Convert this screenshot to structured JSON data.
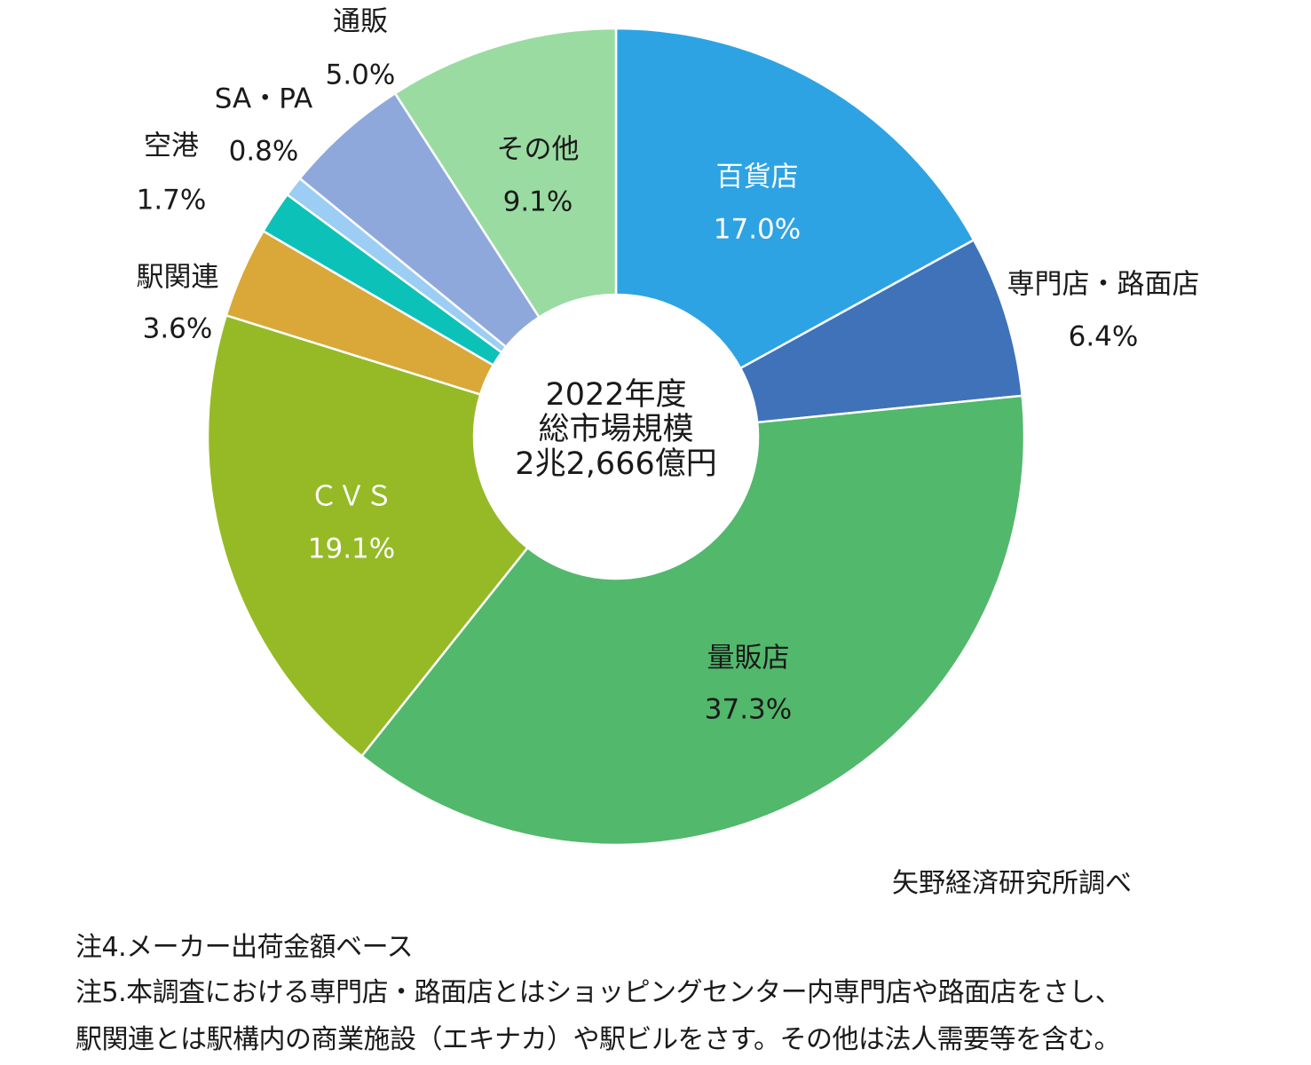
{
  "chart_data": {
    "type": "pie",
    "subtype": "donut",
    "center_text": [
      "2022年度",
      "総市場規模",
      "2兆2,666億円"
    ],
    "slices": [
      {
        "name": "百貨店",
        "value": 17.0,
        "label": "17.0%",
        "color": "#2ea3e3",
        "text_color": "#ffffff"
      },
      {
        "name": "専門店・路面店",
        "value": 6.4,
        "label": "6.4%",
        "color": "#3f72b8",
        "text_color": "#1a1a1a"
      },
      {
        "name": "量販店",
        "value": 37.3,
        "label": "37.3%",
        "color": "#52b86c",
        "text_color": "#1a1a1a"
      },
      {
        "name": "ＣＶＳ",
        "value": 19.1,
        "label": "19.1%",
        "color": "#95ba26",
        "text_color": "#ffffff"
      },
      {
        "name": "駅関連",
        "value": 3.6,
        "label": "3.6%",
        "color": "#d9a838",
        "text_color": "#1a1a1a"
      },
      {
        "name": "空港",
        "value": 1.7,
        "label": "1.7%",
        "color": "#0cc2b8",
        "text_color": "#1a1a1a"
      },
      {
        "name": "SA・PA",
        "value": 0.8,
        "label": "0.8%",
        "color": "#9ccdf4",
        "text_color": "#1a1a1a"
      },
      {
        "name": "通販",
        "value": 5.0,
        "label": "5.0%",
        "color": "#8fa8dc",
        "text_color": "#1a1a1a"
      },
      {
        "name": "その他",
        "value": 9.1,
        "label": "9.1%",
        "color": "#9adba2",
        "text_color": "#1a1a1a"
      }
    ]
  },
  "source": "矢野経済研究所調べ",
  "notes": [
    "注4.メーカー出荷金額ベース",
    "注5.本調査における専門店・路面店とはショッピングセンター内専門店や路面店をさし、",
    "駅関連とは駅構内の商業施設（エキナカ）や駅ビルをさす。その他は法人需要等を含む。"
  ]
}
